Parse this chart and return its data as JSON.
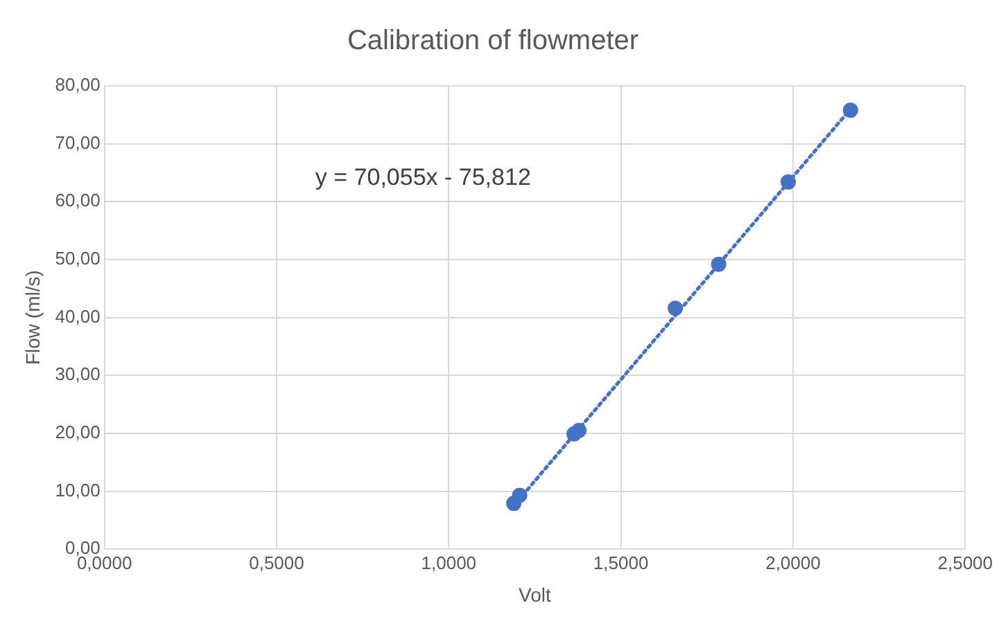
{
  "chart_data": {
    "type": "scatter",
    "title": "Calibration of flowmeter",
    "xlabel": "Volt",
    "ylabel": "Flow (ml/s)",
    "annotations": [
      "y = 70,055x - 75,812"
    ],
    "series": [
      {
        "type": "scatter",
        "color": "#4472c4",
        "marker": "circle",
        "x": [
          1.189,
          1.206,
          1.364,
          1.378,
          1.658,
          1.784,
          1.986,
          2.167
        ],
        "values": [
          7.9,
          9.3,
          19.9,
          20.5,
          41.6,
          49.2,
          63.4,
          75.8
        ]
      },
      {
        "type": "line",
        "color": "#4472c4",
        "marker": "none",
        "line_style": "dotted",
        "x": [
          1.189,
          2.167
        ],
        "values": [
          7.5,
          76.0
        ]
      }
    ],
    "xlim": [
      0,
      2.5
    ],
    "ylim": [
      0,
      80
    ],
    "xticks": [
      {
        "value": 0,
        "label": "0,0000"
      },
      {
        "value": 0.5,
        "label": "0,5000"
      },
      {
        "value": 1,
        "label": "1,0000"
      },
      {
        "value": 1.5,
        "label": "1,5000"
      },
      {
        "value": 2,
        "label": "2,0000"
      },
      {
        "value": 2.5,
        "label": "2,5000"
      }
    ],
    "yticks": [
      {
        "value": 0,
        "label": "0,00"
      },
      {
        "value": 10,
        "label": "10,00"
      },
      {
        "value": 20,
        "label": "20,00"
      },
      {
        "value": 30,
        "label": "30,00"
      },
      {
        "value": 40,
        "label": "40,00"
      },
      {
        "value": 50,
        "label": "50,00"
      },
      {
        "value": 60,
        "label": "60,00"
      },
      {
        "value": 70,
        "label": "70,00"
      },
      {
        "value": 80,
        "label": "80,00"
      }
    ],
    "grid": true
  }
}
